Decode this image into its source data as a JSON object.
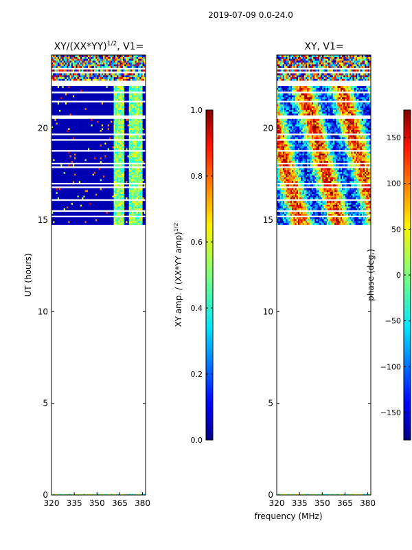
{
  "suptitle": "2019-07-09 0.0-24.0",
  "chart_data": [
    {
      "type": "heatmap",
      "title_main": "XY/(XX*YY)",
      "title_exp": "1/2",
      "title_suffix": ", V1=",
      "ylabel": "UT (hours)",
      "xlabel": "",
      "xlim": [
        320,
        382
      ],
      "ylim": [
        0,
        24
      ],
      "xticks": [
        320,
        335,
        350,
        365,
        380
      ],
      "yticks": [
        0,
        5,
        10,
        15,
        20
      ],
      "data_time_range": [
        14.75,
        24.0
      ],
      "colormap": "jet",
      "colorbar": {
        "label_main": "XY amp. / (XX*YY amp)",
        "label_exp": "1/2",
        "range": [
          0.0,
          1.0
        ],
        "ticks": [
          0.0,
          0.2,
          0.4,
          0.6,
          0.8,
          1.0
        ],
        "tick_labels": [
          "0.0",
          "0.2",
          "0.4",
          "0.6",
          "0.8",
          "1.0"
        ]
      }
    },
    {
      "type": "heatmap",
      "title_main": "XY, V1=",
      "title_exp": "",
      "title_suffix": "",
      "ylabel": "",
      "xlabel": "frequency (MHz)",
      "xlim": [
        320,
        382
      ],
      "ylim": [
        0,
        24
      ],
      "xticks": [
        320,
        335,
        350,
        365,
        380
      ],
      "yticks": [
        0,
        5,
        10,
        15,
        20
      ],
      "data_time_range": [
        14.75,
        24.0
      ],
      "colormap": "jet",
      "colorbar": {
        "label_main": "phase (deg.)",
        "label_exp": "",
        "range": [
          -180,
          180
        ],
        "ticks": [
          -150,
          -100,
          -50,
          0,
          50,
          100,
          150
        ],
        "tick_labels": [
          "−150",
          "−100",
          "−50",
          "0",
          "50",
          "100",
          "150"
        ]
      }
    }
  ]
}
